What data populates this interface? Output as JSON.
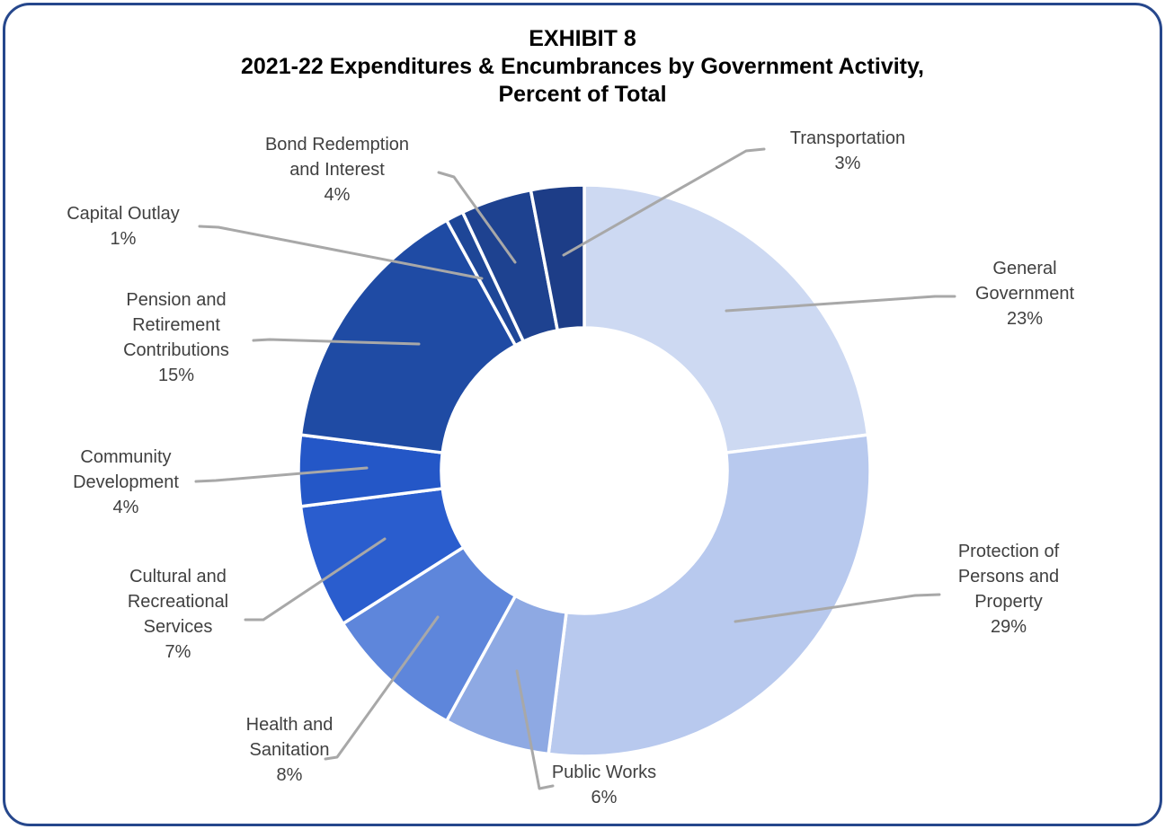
{
  "frame": {
    "border_color": "#26478C"
  },
  "title": {
    "line1": "EXHIBIT 8",
    "line2": "2021-22 Expenditures & Encumbrances by Government Activity,",
    "line3": "Percent of Total"
  },
  "chart_data": {
    "type": "pie",
    "subtype": "donut",
    "title": "EXHIBIT 8 — 2021-22 Expenditures & Encumbrances by Government Activity, Percent of Total",
    "unit": "percent of total",
    "start_angle_deg": 0,
    "direction": "clockwise",
    "donut_hole_ratio": 0.5,
    "total": 100,
    "label_color": "#404040",
    "leader_line_color": "#A8A8A8",
    "slices": [
      {
        "name": "General Government",
        "value": 23,
        "pct_label": "23%",
        "color": "#CDD9F2",
        "label_lines": [
          "General",
          "Government"
        ]
      },
      {
        "name": "Protection of Persons and Property",
        "value": 29,
        "pct_label": "29%",
        "color": "#B8C9EE",
        "label_lines": [
          "Protection of",
          "Persons and",
          "Property"
        ]
      },
      {
        "name": "Public Works",
        "value": 6,
        "pct_label": "6%",
        "color": "#8EA9E3",
        "label_lines": [
          "Public Works"
        ]
      },
      {
        "name": "Health and Sanitation",
        "value": 8,
        "pct_label": "8%",
        "color": "#5E86DB",
        "label_lines": [
          "Health and",
          "Sanitation"
        ]
      },
      {
        "name": "Cultural and Recreational Services",
        "value": 7,
        "pct_label": "7%",
        "color": "#2A5DCE",
        "label_lines": [
          "Cultural and",
          "Recreational",
          "Services"
        ]
      },
      {
        "name": "Community Development",
        "value": 4,
        "pct_label": "4%",
        "color": "#2457C7",
        "label_lines": [
          "Community",
          "Development"
        ]
      },
      {
        "name": "Pension and Retirement Contributions",
        "value": 15,
        "pct_label": "15%",
        "color": "#1F4BA4",
        "label_lines": [
          "Pension and",
          "Retirement",
          "Contributions"
        ]
      },
      {
        "name": "Capital Outlay",
        "value": 1,
        "pct_label": "1%",
        "color": "#1E4697",
        "label_lines": [
          "Capital Outlay"
        ]
      },
      {
        "name": "Bond Redemption and Interest",
        "value": 4,
        "pct_label": "4%",
        "color": "#1E4290",
        "label_lines": [
          "Bond Redemption",
          "and Interest"
        ]
      },
      {
        "name": "Transportation",
        "value": 3,
        "pct_label": "3%",
        "color": "#1D3D87",
        "label_lines": [
          "Transportation"
        ]
      }
    ]
  }
}
